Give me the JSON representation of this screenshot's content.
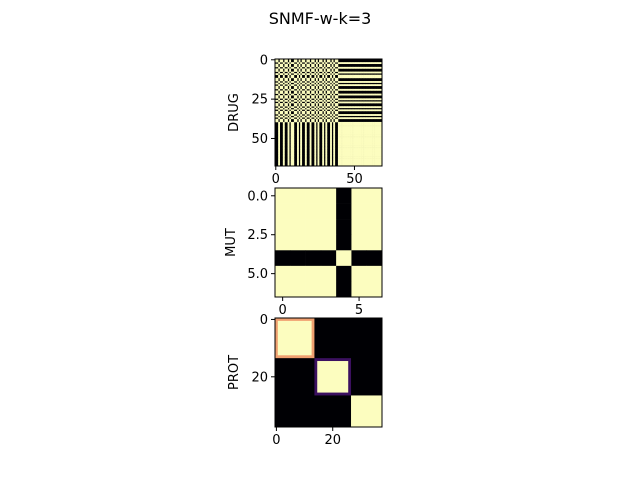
{
  "figure": {
    "title": "SNMF-w-k=3"
  },
  "colors": {
    "low": "#000004",
    "high": "#fcfdbf",
    "mid_orange": "#f0a070",
    "mid_purple": "#3b1060"
  },
  "chart_data": [
    {
      "type": "heatmap",
      "name": "drug-heatmap",
      "ylabel": "DRUG",
      "n": 68,
      "colormap": "magma",
      "value_range": [
        0,
        1
      ],
      "xticks": [
        "0",
        "50"
      ],
      "xtick_values": [
        0,
        50
      ],
      "yticks": [
        "0",
        "25",
        "50"
      ],
      "ytick_values": [
        0,
        25,
        50
      ],
      "cluster_a_indices": [
        0,
        1,
        3,
        4,
        6,
        7,
        9,
        12,
        13,
        15,
        17,
        18,
        20,
        21,
        23,
        24,
        26,
        28,
        29,
        31,
        33,
        34,
        36,
        38,
        39
      ]
    },
    {
      "type": "heatmap",
      "name": "mut-heatmap",
      "ylabel": "MUT",
      "n": 7,
      "colormap": "magma",
      "value_range": [
        0,
        1
      ],
      "xticks": [
        "0",
        "5"
      ],
      "xtick_values": [
        0,
        5
      ],
      "yticks": [
        "0.0",
        "2.5",
        "5.0"
      ],
      "ytick_values": [
        0,
        2.5,
        5
      ],
      "cluster_sizes": [
        4,
        1,
        2
      ],
      "row_clusters": [
        0,
        0,
        0,
        0,
        1,
        2,
        2
      ],
      "col_clusters": [
        0,
        0,
        0,
        0,
        1,
        2,
        2
      ]
    },
    {
      "type": "heatmap",
      "name": "prot-heatmap",
      "ylabel": "PROT",
      "n": 38,
      "colormap": "magma",
      "value_range": [
        0,
        1
      ],
      "xticks": [
        "0",
        "20"
      ],
      "xtick_values": [
        0,
        20
      ],
      "yticks": [
        "0",
        "20"
      ],
      "ytick_values": [
        0,
        20
      ],
      "blocks": [
        [
          0,
          14
        ],
        [
          14,
          27
        ],
        [
          27,
          38
        ]
      ]
    }
  ]
}
